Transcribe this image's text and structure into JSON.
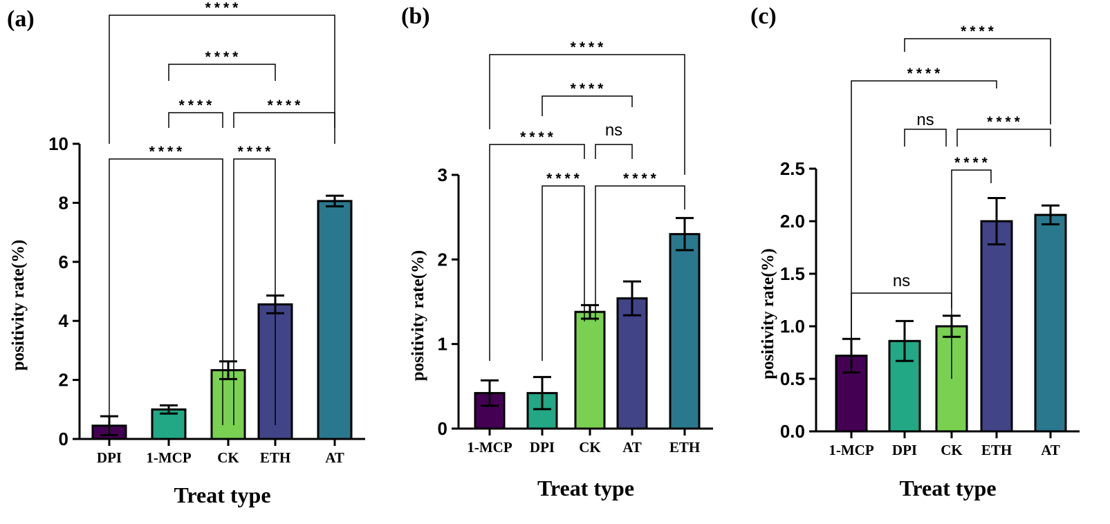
{
  "chart_data": [
    {
      "type": "bar",
      "panel_label": "(a)",
      "categories": [
        "DPI",
        "1-MCP",
        "CK",
        "ETH",
        "AT"
      ],
      "values": [
        0.45,
        1.0,
        2.33,
        4.56,
        8.06
      ],
      "errors": [
        0.32,
        0.14,
        0.3,
        0.3,
        0.18
      ],
      "colors": [
        "#440154",
        "#22a884",
        "#7ad151",
        "#414487",
        "#2a788e"
      ],
      "xlabel": "Treat type",
      "ylabel": "positivity rate(%)",
      "ylim": [
        0,
        10
      ],
      "yticks": [
        "0",
        "2",
        "4",
        "6",
        "8",
        "10"
      ],
      "significance": [
        {
          "from": "DPI",
          "to": "AT",
          "label": "****"
        },
        {
          "from": "1-MCP",
          "to": "ETH",
          "label": "****"
        },
        {
          "from": "1-MCP",
          "to": "CK",
          "label": "****"
        },
        {
          "from": "CK",
          "to": "AT",
          "label": "****"
        },
        {
          "from": "DPI",
          "to": "CK",
          "label": "****"
        },
        {
          "from": "CK",
          "to": "ETH",
          "label": "****"
        }
      ]
    },
    {
      "type": "bar",
      "panel_label": "(b)",
      "categories": [
        "1-MCP",
        "DPI",
        "CK",
        "AT",
        "ETH"
      ],
      "values": [
        0.42,
        0.42,
        1.38,
        1.54,
        2.3
      ],
      "errors": [
        0.15,
        0.19,
        0.08,
        0.2,
        0.19
      ],
      "colors": [
        "#440154",
        "#22a884",
        "#7ad151",
        "#414487",
        "#2a788e"
      ],
      "xlabel": "Treat type",
      "ylabel": "positivity rate(%)",
      "ylim": [
        0,
        3
      ],
      "yticks": [
        "0",
        "1",
        "2",
        "3"
      ],
      "significance": [
        {
          "from": "1-MCP",
          "to": "ETH",
          "label": "****"
        },
        {
          "from": "DPI",
          "to": "AT",
          "label": "****"
        },
        {
          "from": "1-MCP",
          "to": "CK",
          "label": "****"
        },
        {
          "from": "CK",
          "to": "AT",
          "label": "ns"
        },
        {
          "from": "DPI",
          "to": "CK",
          "label": "****"
        },
        {
          "from": "CK",
          "to": "ETH",
          "label": "****"
        }
      ]
    },
    {
      "type": "bar",
      "panel_label": "(c)",
      "categories": [
        "1-MCP",
        "DPI",
        "CK",
        "ETH",
        "AT"
      ],
      "values": [
        0.72,
        0.86,
        1.0,
        2.0,
        2.06
      ],
      "errors": [
        0.16,
        0.19,
        0.1,
        0.22,
        0.09
      ],
      "colors": [
        "#440154",
        "#22a884",
        "#7ad151",
        "#414487",
        "#2a788e"
      ],
      "xlabel": "Treat type",
      "ylabel": "positivity rate(%)",
      "ylim": [
        0,
        2.5
      ],
      "yticks": [
        "0.0",
        "0.5",
        "1.0",
        "1.5",
        "2.0",
        "2.5"
      ],
      "significance": [
        {
          "from": "DPI",
          "to": "AT",
          "label": "****"
        },
        {
          "from": "1-MCP",
          "to": "ETH",
          "label": "****"
        },
        {
          "from": "DPI",
          "to": "CK",
          "label": "ns"
        },
        {
          "from": "CK",
          "to": "AT",
          "label": "****"
        },
        {
          "from": "CK",
          "to": "ETH",
          "label": "****"
        },
        {
          "from": "1-MCP",
          "to": "CK",
          "label": "ns"
        }
      ]
    }
  ]
}
